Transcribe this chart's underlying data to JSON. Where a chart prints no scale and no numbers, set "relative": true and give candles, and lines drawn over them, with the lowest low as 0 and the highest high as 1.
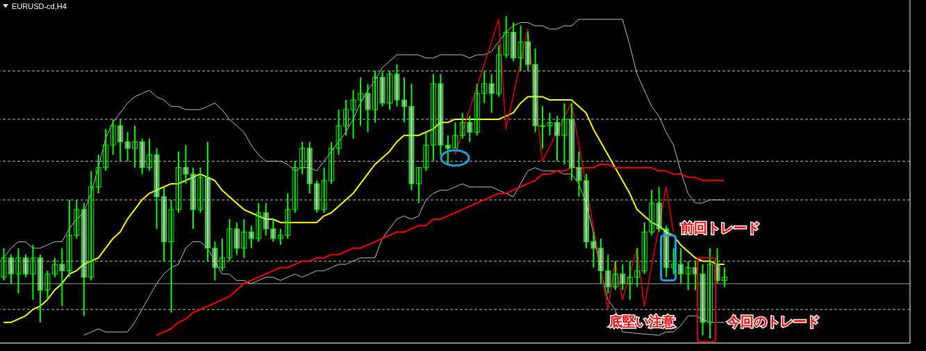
{
  "chart_data": {
    "type": "candlestick",
    "title": "EURUSD-cd,H4",
    "relative": true,
    "color": "#00ff00",
    "categories": [
      null,
      null,
      null,
      null,
      null,
      null,
      null,
      null,
      null,
      null,
      null,
      null,
      null,
      null,
      null,
      null,
      null,
      null,
      null,
      null,
      null,
      null,
      null,
      null,
      null,
      null,
      null,
      null,
      null,
      null,
      null,
      null,
      null,
      null,
      null,
      null,
      null,
      null,
      null,
      null,
      null,
      null,
      null,
      null,
      null,
      null,
      null,
      null,
      null,
      null,
      null,
      null,
      null,
      null,
      null,
      null,
      null,
      null,
      null,
      null,
      null,
      null,
      null,
      null,
      null,
      null,
      null,
      null,
      null,
      null,
      null,
      null,
      null,
      null,
      null,
      null,
      null,
      null,
      null,
      null,
      null,
      null,
      null,
      null,
      null,
      null,
      null,
      null,
      null,
      null,
      null,
      null,
      null,
      null,
      null,
      null,
      null,
      null,
      null,
      null
    ],
    "ohlc": [
      [
        0.19,
        0.28,
        0.18,
        0.25
      ],
      [
        0.25,
        0.26,
        0.17,
        0.2
      ],
      [
        0.2,
        0.28,
        0.14,
        0.25
      ],
      [
        0.25,
        0.26,
        0.19,
        0.2
      ],
      [
        0.2,
        0.29,
        0.12,
        0.25
      ],
      [
        0.25,
        0.26,
        0.05,
        0.15
      ],
      [
        0.15,
        0.21,
        0.12,
        0.2
      ],
      [
        0.2,
        0.25,
        0.19,
        0.23
      ],
      [
        0.23,
        0.28,
        0.1,
        0.21
      ],
      [
        0.21,
        0.43,
        0.19,
        0.32
      ],
      [
        0.32,
        0.43,
        0.31,
        0.4
      ],
      [
        0.4,
        0.42,
        0.07,
        0.19
      ],
      [
        0.19,
        0.52,
        0.18,
        0.47
      ],
      [
        0.47,
        0.57,
        0.45,
        0.53
      ],
      [
        0.53,
        0.65,
        0.52,
        0.6
      ],
      [
        0.6,
        0.68,
        0.57,
        0.66
      ],
      [
        0.66,
        0.68,
        0.55,
        0.61
      ],
      [
        0.61,
        0.64,
        0.55,
        0.59
      ],
      [
        0.59,
        0.66,
        0.53,
        0.61
      ],
      [
        0.61,
        0.62,
        0.51,
        0.53
      ],
      [
        0.53,
        0.62,
        0.52,
        0.57
      ],
      [
        0.57,
        0.59,
        0.34,
        0.44
      ],
      [
        0.44,
        0.47,
        0.24,
        0.3
      ],
      [
        0.3,
        0.43,
        0.08,
        0.4
      ],
      [
        0.4,
        0.58,
        0.39,
        0.53
      ],
      [
        0.53,
        0.6,
        0.48,
        0.51
      ],
      [
        0.51,
        0.53,
        0.34,
        0.4
      ],
      [
        0.4,
        0.53,
        0.39,
        0.5
      ],
      [
        0.5,
        0.61,
        0.24,
        0.28
      ],
      [
        0.28,
        0.3,
        0.18,
        0.22
      ],
      [
        0.22,
        0.31,
        0.21,
        0.25
      ],
      [
        0.25,
        0.37,
        0.24,
        0.34
      ],
      [
        0.34,
        0.36,
        0.26,
        0.28
      ],
      [
        0.28,
        0.37,
        0.25,
        0.33
      ],
      [
        0.33,
        0.35,
        0.28,
        0.31
      ],
      [
        0.31,
        0.42,
        0.3,
        0.39
      ],
      [
        0.39,
        0.42,
        0.32,
        0.34
      ],
      [
        0.34,
        0.37,
        0.3,
        0.31
      ],
      [
        0.31,
        0.34,
        0.29,
        0.32
      ],
      [
        0.32,
        0.45,
        0.31,
        0.4
      ],
      [
        0.4,
        0.55,
        0.39,
        0.53
      ],
      [
        0.53,
        0.61,
        0.51,
        0.59
      ],
      [
        0.59,
        0.61,
        0.45,
        0.48
      ],
      [
        0.48,
        0.49,
        0.39,
        0.4
      ],
      [
        0.4,
        0.53,
        0.39,
        0.49
      ],
      [
        0.49,
        0.61,
        0.48,
        0.59
      ],
      [
        0.59,
        0.71,
        0.57,
        0.66
      ],
      [
        0.66,
        0.74,
        0.63,
        0.71
      ],
      [
        0.71,
        0.77,
        0.62,
        0.74
      ],
      [
        0.74,
        0.81,
        0.66,
        0.76
      ],
      [
        0.76,
        0.79,
        0.64,
        0.71
      ],
      [
        0.71,
        0.83,
        0.67,
        0.81
      ],
      [
        0.81,
        0.83,
        0.72,
        0.73
      ],
      [
        0.73,
        0.83,
        0.71,
        0.82
      ],
      [
        0.82,
        0.85,
        0.72,
        0.74
      ],
      [
        0.74,
        0.81,
        0.67,
        0.72
      ],
      [
        0.72,
        0.79,
        0.46,
        0.48
      ],
      [
        0.48,
        0.53,
        0.42,
        0.53
      ],
      [
        0.53,
        0.64,
        0.52,
        0.6
      ],
      [
        0.6,
        0.82,
        0.55,
        0.79
      ],
      [
        0.79,
        0.82,
        0.57,
        0.6
      ],
      [
        0.6,
        0.63,
        0.54,
        0.59
      ],
      [
        0.59,
        0.67,
        0.59,
        0.63
      ],
      [
        0.63,
        0.7,
        0.62,
        0.67
      ],
      [
        0.67,
        0.69,
        0.61,
        0.64
      ],
      [
        0.64,
        0.79,
        0.63,
        0.76
      ],
      [
        0.76,
        0.83,
        0.73,
        0.79
      ],
      [
        0.79,
        0.82,
        0.7,
        0.76
      ],
      [
        0.76,
        0.91,
        0.75,
        0.88
      ],
      [
        0.88,
        1.0,
        0.87,
        0.95
      ],
      [
        0.95,
        0.98,
        0.86,
        0.87
      ],
      [
        0.87,
        0.97,
        0.83,
        0.92
      ],
      [
        0.92,
        0.95,
        0.83,
        0.85
      ],
      [
        0.85,
        0.9,
        0.64,
        0.66
      ],
      [
        0.66,
        0.72,
        0.59,
        0.66
      ],
      [
        0.66,
        0.7,
        0.63,
        0.67
      ],
      [
        0.67,
        0.69,
        0.55,
        0.63
      ],
      [
        0.63,
        0.73,
        0.54,
        0.68
      ],
      [
        0.68,
        0.73,
        0.49,
        0.53
      ],
      [
        0.53,
        0.58,
        0.44,
        0.49
      ],
      [
        0.49,
        0.51,
        0.28,
        0.3
      ],
      [
        0.3,
        0.33,
        0.22,
        0.28
      ],
      [
        0.28,
        0.31,
        0.17,
        0.21
      ],
      [
        0.21,
        0.26,
        0.14,
        0.16
      ],
      [
        0.16,
        0.24,
        0.15,
        0.2
      ],
      [
        0.2,
        0.23,
        0.15,
        0.17
      ],
      [
        0.17,
        0.24,
        0.12,
        0.19
      ],
      [
        0.19,
        0.28,
        0.16,
        0.21
      ],
      [
        0.21,
        0.36,
        0.2,
        0.33
      ],
      [
        0.33,
        0.46,
        0.32,
        0.42
      ],
      [
        0.42,
        0.47,
        0.33,
        0.34
      ],
      [
        0.34,
        0.35,
        0.19,
        0.22
      ],
      [
        0.22,
        0.28,
        0.2,
        0.23
      ],
      [
        0.23,
        0.28,
        0.17,
        0.2
      ],
      [
        0.2,
        0.24,
        0.15,
        0.22
      ],
      [
        0.22,
        0.24,
        0.15,
        0.2
      ],
      [
        0.2,
        0.23,
        0.01,
        0.05
      ],
      [
        0.05,
        0.28,
        0.0,
        0.23
      ],
      [
        0.23,
        0.28,
        0.17,
        0.18
      ],
      [
        0.18,
        0.22,
        0.16,
        0.19
      ]
    ],
    "series": [
      {
        "type": "line",
        "color": "#c0c0c0",
        "values": [
          0.25,
          0.28,
          0.3,
          0.3,
          0.28,
          0.28,
          0.29,
          0.3,
          0.3,
          0.34,
          0.37,
          0.39,
          0.45,
          0.53,
          0.62,
          0.67,
          0.7,
          0.73,
          0.75,
          0.76,
          0.77,
          0.75,
          0.74,
          0.72,
          0.72,
          0.71,
          0.71,
          0.71,
          0.72,
          0.73,
          0.71,
          0.68,
          0.66,
          0.64,
          0.6,
          0.57,
          0.55,
          0.55,
          0.55,
          0.54,
          0.52,
          0.53,
          0.53,
          0.52,
          0.55,
          0.58,
          0.61,
          0.64,
          0.68,
          0.73,
          0.77,
          0.8,
          0.84,
          0.86,
          0.88,
          0.88,
          0.88,
          0.88,
          0.87,
          0.87,
          0.88,
          0.88,
          0.88,
          0.88,
          0.87,
          0.88,
          0.88,
          0.89,
          0.92,
          0.95,
          0.97,
          0.98,
          0.98,
          0.97,
          0.97,
          0.96,
          0.96,
          0.97,
          0.97,
          0.99,
          null,
          null,
          null,
          null,
          null,
          0.99,
          0.91,
          0.82,
          0.77,
          0.72,
          0.69,
          0.64,
          0.6,
          0.52,
          0.45,
          0.42,
          0.42,
          0.43,
          0.43,
          0.43
        ]
      },
      {
        "type": "line",
        "color": "#c0c0c0",
        "values": [
          null,
          null,
          null,
          null,
          null,
          null,
          null,
          null,
          null,
          null,
          null,
          0.01,
          0.02,
          0.03,
          0.02,
          null,
          null,
          0.02,
          0.05,
          0.09,
          0.13,
          0.17,
          0.2,
          0.22,
          0.23,
          0.28,
          0.3,
          0.3,
          0.28,
          0.24,
          0.2,
          0.2,
          0.18,
          0.18,
          0.17,
          0.18,
          0.19,
          0.19,
          0.18,
          0.19,
          0.2,
          0.19,
          0.2,
          0.21,
          0.21,
          0.22,
          0.23,
          0.23,
          0.24,
          0.25,
          0.25,
          0.25,
          0.31,
          0.34,
          0.37,
          0.38,
          0.37,
          0.38,
          0.43,
          0.45,
          0.46,
          0.46,
          0.47,
          0.48,
          0.47,
          0.47,
          0.47,
          0.47,
          0.46,
          0.45,
          0.44,
          0.48,
          0.52,
          0.53,
          0.52,
          0.52,
          0.52,
          0.51,
          0.51,
          0.48,
          0.42,
          0.33,
          0.21,
          0.12,
          0.09,
          0.02,
          null,
          null,
          null,
          null,
          0.01,
          0.02,
          0.02,
          0.04,
          0.07,
          0.07,
          0.06,
          0.05,
          0.05,
          0.05
        ]
      },
      {
        "type": "line",
        "color": "#ffff00",
        "values": [
          0.05,
          0.05,
          0.06,
          0.07,
          0.09,
          0.1,
          0.12,
          0.15,
          0.17,
          0.2,
          0.21,
          0.23,
          0.24,
          0.25,
          0.28,
          0.31,
          0.33,
          0.37,
          0.4,
          0.43,
          0.45,
          0.46,
          0.47,
          0.48,
          0.48,
          0.49,
          0.5,
          0.51,
          0.5,
          0.49,
          0.46,
          0.44,
          0.42,
          0.4,
          0.39,
          0.38,
          0.37,
          0.37,
          0.36,
          0.36,
          0.36,
          0.36,
          0.36,
          0.36,
          0.38,
          0.39,
          0.41,
          0.43,
          0.45,
          0.48,
          0.51,
          0.54,
          0.56,
          0.58,
          0.61,
          0.63,
          0.63,
          0.63,
          0.64,
          0.65,
          0.67,
          0.67,
          0.68,
          0.68,
          0.68,
          0.68,
          0.68,
          0.68,
          0.68,
          0.69,
          0.7,
          0.73,
          0.75,
          0.75,
          0.75,
          0.74,
          0.74,
          0.74,
          0.74,
          0.72,
          0.7,
          0.65,
          0.61,
          0.57,
          0.53,
          0.49,
          0.45,
          0.4,
          0.38,
          0.36,
          0.35,
          0.33,
          0.32,
          0.29,
          0.27,
          0.25,
          0.24,
          0.24,
          0.23,
          0.23
        ]
      },
      {
        "type": "line",
        "color": "#ff0000",
        "values": [
          null,
          null,
          null,
          null,
          null,
          null,
          null,
          null,
          null,
          null,
          null,
          null,
          null,
          null,
          null,
          null,
          null,
          null,
          null,
          null,
          null,
          0.01,
          0.02,
          0.03,
          0.05,
          0.06,
          0.08,
          0.09,
          0.1,
          0.11,
          0.12,
          0.13,
          0.15,
          0.17,
          0.18,
          0.19,
          0.2,
          0.21,
          0.22,
          0.22,
          0.23,
          0.24,
          0.24,
          0.25,
          0.25,
          0.26,
          0.26,
          0.27,
          0.28,
          0.28,
          0.29,
          0.3,
          0.31,
          0.32,
          0.33,
          0.33,
          0.34,
          0.35,
          0.35,
          0.37,
          0.37,
          0.38,
          0.39,
          0.4,
          0.41,
          0.42,
          0.43,
          0.44,
          0.45,
          0.45,
          0.46,
          0.47,
          0.48,
          0.49,
          0.51,
          0.51,
          0.52,
          0.52,
          0.53,
          0.53,
          0.53,
          0.53,
          0.54,
          0.54,
          0.53,
          0.53,
          0.53,
          0.53,
          0.53,
          0.53,
          0.52,
          0.52,
          0.51,
          0.51,
          0.5,
          0.5,
          0.49,
          0.49,
          0.49,
          0.49
        ]
      },
      {
        "type": "line",
        "color": "#e00000",
        "values": [
          null,
          null,
          null,
          null,
          null,
          null,
          null,
          null,
          null,
          null,
          null,
          null,
          null,
          null,
          null,
          null,
          null,
          null,
          null,
          null,
          null,
          null,
          null,
          null,
          null,
          null,
          null,
          null,
          null,
          null,
          null,
          null,
          null,
          null,
          null,
          null,
          null,
          null,
          null,
          null,
          null,
          null,
          null,
          null,
          null,
          null,
          null,
          null,
          null,
          null,
          null,
          null,
          null,
          null,
          null,
          null,
          null,
          null,
          null,
          null,
          null,
          null,
          0.57,
          null,
          null,
          null,
          null,
          null,
          0.99,
          0.65,
          null,
          null,
          0.96,
          null,
          0.55,
          null,
          null,
          null,
          0.73,
          null,
          null,
          null,
          null,
          0.09,
          0.24,
          0.12,
          null,
          0.28,
          0.1,
          null,
          null,
          0.47,
          0.33,
          null,
          null,
          null,
          null,
          null,
          null,
          null
        ]
      }
    ],
    "ref_lines": [
      {
        "axis": "y",
        "value": 0.83,
        "color": "#c0c0c0",
        "line_style": "dashed"
      },
      {
        "axis": "y",
        "value": 0.68,
        "color": "#c0c0c0",
        "line_style": "dashed"
      },
      {
        "axis": "y",
        "value": 0.55,
        "color": "#c0c0c0",
        "line_style": "dashed"
      },
      {
        "axis": "y",
        "value": 0.43,
        "color": "#c0c0c0",
        "line_style": "dashed"
      },
      {
        "axis": "y",
        "value": 0.24,
        "color": "#c0c0c0",
        "line_style": "dashed"
      },
      {
        "axis": "y",
        "value": 0.09,
        "color": "#c0c0c0",
        "line_style": "dashed"
      },
      {
        "axis": "y",
        "value": 0.17,
        "color": "#a0a0a0",
        "line_style": "solid"
      }
    ],
    "annotations": [
      "前回トレード",
      "底堅い注意",
      "今回のトレード"
    ]
  }
}
